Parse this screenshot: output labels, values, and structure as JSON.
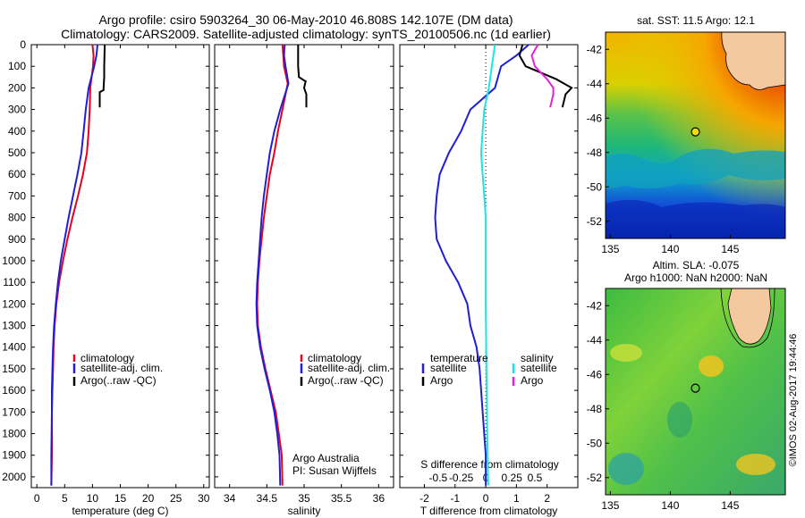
{
  "header": {
    "line1": "Argo profile: csiro 5903264_30 06-May-2010 46.808S 142.107E (DM data)",
    "line2": "Climatology: CARS2009. Satellite-adjusted climatology: synTS_20100506.nc (1d earlier)"
  },
  "colors": {
    "climatology": "#e8001c",
    "satellite": "#1f1fd6",
    "argo": "#000000",
    "salinity_satellite": "#17e6e6",
    "salinity_argo": "#e81ee0"
  },
  "chart_data": [
    {
      "type": "line",
      "xlabel": "temperature (deg C)",
      "ylabel": "",
      "xlim": [
        -1,
        31
      ],
      "ylim": [
        2050,
        0
      ],
      "xticks": [
        "0",
        "5",
        "10",
        "15",
        "20",
        "25",
        "30"
      ],
      "yticks": [
        "0",
        "100",
        "200",
        "300",
        "400",
        "500",
        "600",
        "700",
        "800",
        "900",
        "1000",
        "1100",
        "1200",
        "1300",
        "1400",
        "1500",
        "1600",
        "1700",
        "1800",
        "1900",
        "2000"
      ],
      "legend": [
        "climatology",
        "satellite-adj. clim.",
        "Argo(..raw -QC)"
      ],
      "legend_position": "lower-center",
      "series": [
        {
          "name": "climatology",
          "x": [
            10.0,
            10.2,
            10.1,
            9.6,
            9.5,
            9.3,
            9.0,
            8.3,
            7.4,
            6.4,
            5.5,
            4.7,
            4.0,
            3.5,
            3.2,
            3.0,
            2.9,
            2.8,
            2.7,
            2.7,
            2.6
          ],
          "y": [
            0,
            50,
            100,
            200,
            300,
            400,
            500,
            600,
            700,
            800,
            900,
            1000,
            1100,
            1200,
            1300,
            1400,
            1500,
            1600,
            1700,
            1900,
            2040
          ]
        },
        {
          "name": "satellite-adj. clim.",
          "x": [
            10.9,
            10.7,
            10.3,
            9.3,
            8.8,
            8.4,
            8.0,
            7.3,
            6.5,
            5.7,
            5.0,
            4.3,
            3.8,
            3.4,
            3.1,
            2.9,
            2.8,
            2.7,
            2.7,
            2.6,
            2.6
          ],
          "y": [
            0,
            50,
            100,
            200,
            300,
            400,
            500,
            600,
            700,
            800,
            900,
            1000,
            1100,
            1200,
            1300,
            1400,
            1500,
            1600,
            1700,
            1900,
            2040
          ]
        },
        {
          "name": "Argo(..raw -QC)",
          "x": [
            12.2,
            12.1,
            12.1,
            12.0,
            12.0,
            11.3,
            11.3
          ],
          "y": [
            0,
            100,
            150,
            200,
            210,
            220,
            290
          ]
        }
      ]
    },
    {
      "type": "line",
      "xlabel": "salinity",
      "xlim": [
        33.8,
        36.2
      ],
      "ylim": [
        2050,
        0
      ],
      "xticks": [
        "34",
        "34.5",
        "35",
        "35.5",
        "36"
      ],
      "legend": [
        "climatology",
        "satellite-adj. clim.",
        "Argo(..raw -QC)"
      ],
      "legend_position": "lower-right",
      "annotation": [
        "Argo Australia",
        "PI: Susan Wijffels"
      ],
      "series": [
        {
          "name": "climatology",
          "x": [
            34.71,
            34.72,
            34.73,
            34.78,
            34.71,
            34.65,
            34.6,
            34.54,
            34.5,
            34.46,
            34.43,
            34.4,
            34.38,
            34.37,
            34.38,
            34.42,
            34.48,
            34.55,
            34.62,
            34.66,
            34.7,
            34.71
          ],
          "y": [
            0,
            50,
            100,
            180,
            300,
            400,
            500,
            600,
            700,
            800,
            900,
            1000,
            1100,
            1200,
            1300,
            1400,
            1500,
            1600,
            1700,
            1800,
            1900,
            2040
          ]
        },
        {
          "name": "satellite-adj. clim.",
          "x": [
            34.74,
            34.73,
            34.75,
            34.79,
            34.68,
            34.6,
            34.54,
            34.5,
            34.46,
            34.43,
            34.41,
            34.39,
            34.37,
            34.36,
            34.37,
            34.41,
            34.47,
            34.54,
            34.6,
            34.64,
            34.67,
            34.68
          ],
          "y": [
            0,
            50,
            100,
            180,
            300,
            400,
            500,
            600,
            700,
            800,
            900,
            1000,
            1100,
            1200,
            1300,
            1400,
            1500,
            1600,
            1700,
            1800,
            1900,
            2040
          ]
        },
        {
          "name": "Argo(..raw -QC)",
          "x": [
            34.92,
            34.92,
            34.93,
            35.02,
            35.0,
            35.03,
            35.03
          ],
          "y": [
            0,
            100,
            150,
            170,
            200,
            230,
            290
          ]
        }
      ]
    },
    {
      "type": "line",
      "xlabel": "T difference from climatology",
      "xlabel_top": "S difference from climatology",
      "xlim": [
        -2.8,
        3.0
      ],
      "ylim": [
        2050,
        0
      ],
      "xticks": [
        "-2",
        "-1",
        "0",
        "1",
        "2"
      ],
      "xticks_secondary": [
        "-0.5",
        "-0.25",
        "0",
        "0.25",
        "0.5"
      ],
      "legend_temperature": [
        "temperature",
        "satellite",
        "Argo"
      ],
      "legend_salinity": [
        "salinity",
        "satellite",
        "Argo"
      ],
      "legend_position": "lower-center",
      "series": [
        {
          "name": "temperature satellite",
          "x": [
            1.4,
            1.0,
            0.5,
            0.3,
            -0.5,
            -0.8,
            -1.2,
            -1.5,
            -1.6,
            -1.65,
            -1.6,
            -1.3,
            -0.9,
            -0.6,
            -0.5,
            -0.3,
            -0.2,
            -0.1,
            0,
            0
          ],
          "y": [
            0,
            50,
            100,
            200,
            300,
            400,
            500,
            600,
            700,
            800,
            900,
            1000,
            1100,
            1200,
            1300,
            1400,
            1500,
            1700,
            1900,
            2040
          ]
        },
        {
          "name": "temperature Argo",
          "x": [
            1.2,
            1.1,
            1.3,
            2.3,
            2.8,
            2.6,
            2.5
          ],
          "y": [
            0,
            50,
            100,
            160,
            200,
            230,
            290
          ]
        },
        {
          "name": "salinity satellite",
          "x": [
            0.3,
            0.25,
            0.2,
            0.1,
            -0.05,
            -0.1,
            -0.15,
            -0.1,
            -0.05,
            0,
            0,
            0,
            0.02,
            0.05,
            0.08
          ],
          "y": [
            0,
            50,
            100,
            200,
            300,
            400,
            500,
            600,
            700,
            800,
            1000,
            1200,
            1500,
            1800,
            2040
          ]
        },
        {
          "name": "salinity Argo",
          "x": [
            1.7,
            1.5,
            1.6,
            2.0,
            2.2,
            2.2,
            2.1
          ],
          "y": [
            0,
            50,
            100,
            160,
            200,
            230,
            290
          ]
        }
      ]
    },
    {
      "type": "heatmap",
      "title": "sat. SST: 11.5 Argo: 12.1",
      "xlim": [
        134.6,
        149.6
      ],
      "ylim": [
        -53,
        -41
      ],
      "xticks": [
        "135",
        "140",
        "145"
      ],
      "yticks": [
        "-42",
        "-44",
        "-46",
        "-48",
        "-50",
        "-52"
      ],
      "argo_position": {
        "lon": 142.1,
        "lat": -46.8
      }
    },
    {
      "type": "heatmap",
      "title_lines": [
        "Altim. SLA: -0.075",
        "Argo h1000: NaN h2000: NaN"
      ],
      "xlim": [
        134.6,
        149.6
      ],
      "ylim": [
        -53,
        -41
      ],
      "xticks": [
        "135",
        "140",
        "145"
      ],
      "yticks": [
        "-42",
        "-44",
        "-46",
        "-48",
        "-50",
        "-52"
      ],
      "argo_position": {
        "lon": 142.1,
        "lat": -46.8
      },
      "side_label": "©IMOS 02-Aug-2017 19:44:46"
    }
  ]
}
